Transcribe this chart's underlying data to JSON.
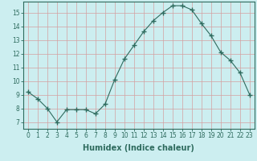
{
  "x": [
    0,
    1,
    2,
    3,
    4,
    5,
    6,
    7,
    8,
    9,
    10,
    11,
    12,
    13,
    14,
    15,
    16,
    17,
    18,
    19,
    20,
    21,
    22,
    23
  ],
  "y": [
    9.2,
    8.7,
    8.0,
    7.0,
    7.9,
    7.9,
    7.9,
    7.6,
    8.3,
    10.1,
    11.6,
    12.6,
    13.6,
    14.4,
    15.0,
    15.5,
    15.5,
    15.2,
    14.2,
    13.3,
    12.1,
    11.5,
    10.6,
    9.0
  ],
  "line_color": "#2e6b5e",
  "marker": "+",
  "marker_size": 4,
  "bg_color": "#cceef0",
  "grid_color": "#d4a0a0",
  "axis_color": "#2e6b5e",
  "xlabel": "Humidex (Indice chaleur)",
  "ylabel": "",
  "title": "",
  "xlim": [
    -0.5,
    23.5
  ],
  "ylim": [
    6.5,
    15.8
  ],
  "yticks": [
    7,
    8,
    9,
    10,
    11,
    12,
    13,
    14,
    15
  ],
  "xticks": [
    0,
    1,
    2,
    3,
    4,
    5,
    6,
    7,
    8,
    9,
    10,
    11,
    12,
    13,
    14,
    15,
    16,
    17,
    18,
    19,
    20,
    21,
    22,
    23
  ],
  "xtick_labels": [
    "0",
    "1",
    "2",
    "3",
    "4",
    "5",
    "6",
    "7",
    "8",
    "9",
    "10",
    "11",
    "12",
    "13",
    "14",
    "15",
    "16",
    "17",
    "18",
    "19",
    "20",
    "21",
    "22",
    "23"
  ],
  "font_color": "#2e6b5e",
  "font_size": 5.5,
  "xlabel_fontsize": 7
}
